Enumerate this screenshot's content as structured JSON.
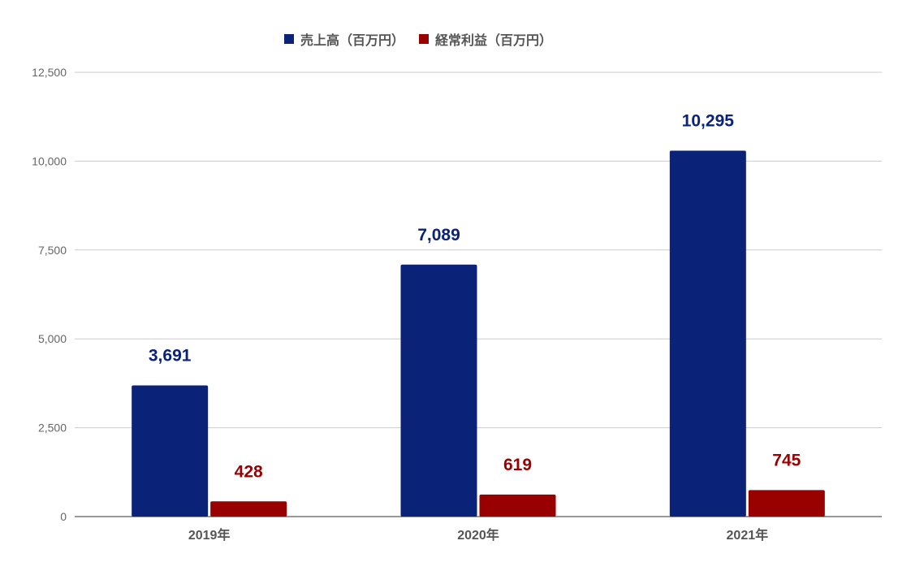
{
  "chart_data": {
    "type": "bar",
    "categories": [
      "2019年",
      "2020年",
      "2021年"
    ],
    "series": [
      {
        "name": "売上高（百万円）",
        "values": [
          3691,
          7089,
          10295
        ],
        "color": "#0a2379",
        "labels": [
          "3,691",
          "7,089",
          "10,295"
        ]
      },
      {
        "name": "経常利益（百万円）",
        "values": [
          428,
          619,
          745
        ],
        "color": "#990000",
        "labels": [
          "428",
          "619",
          "745"
        ]
      }
    ],
    "yticks": [
      0,
      2500,
      5000,
      7500,
      10000,
      12500
    ],
    "ytick_labels": [
      "0",
      "2,500",
      "5,000",
      "7,500",
      "10,000",
      "12,500"
    ],
    "ylim": [
      0,
      12500
    ],
    "grid": true,
    "legend_position": "top-center"
  }
}
